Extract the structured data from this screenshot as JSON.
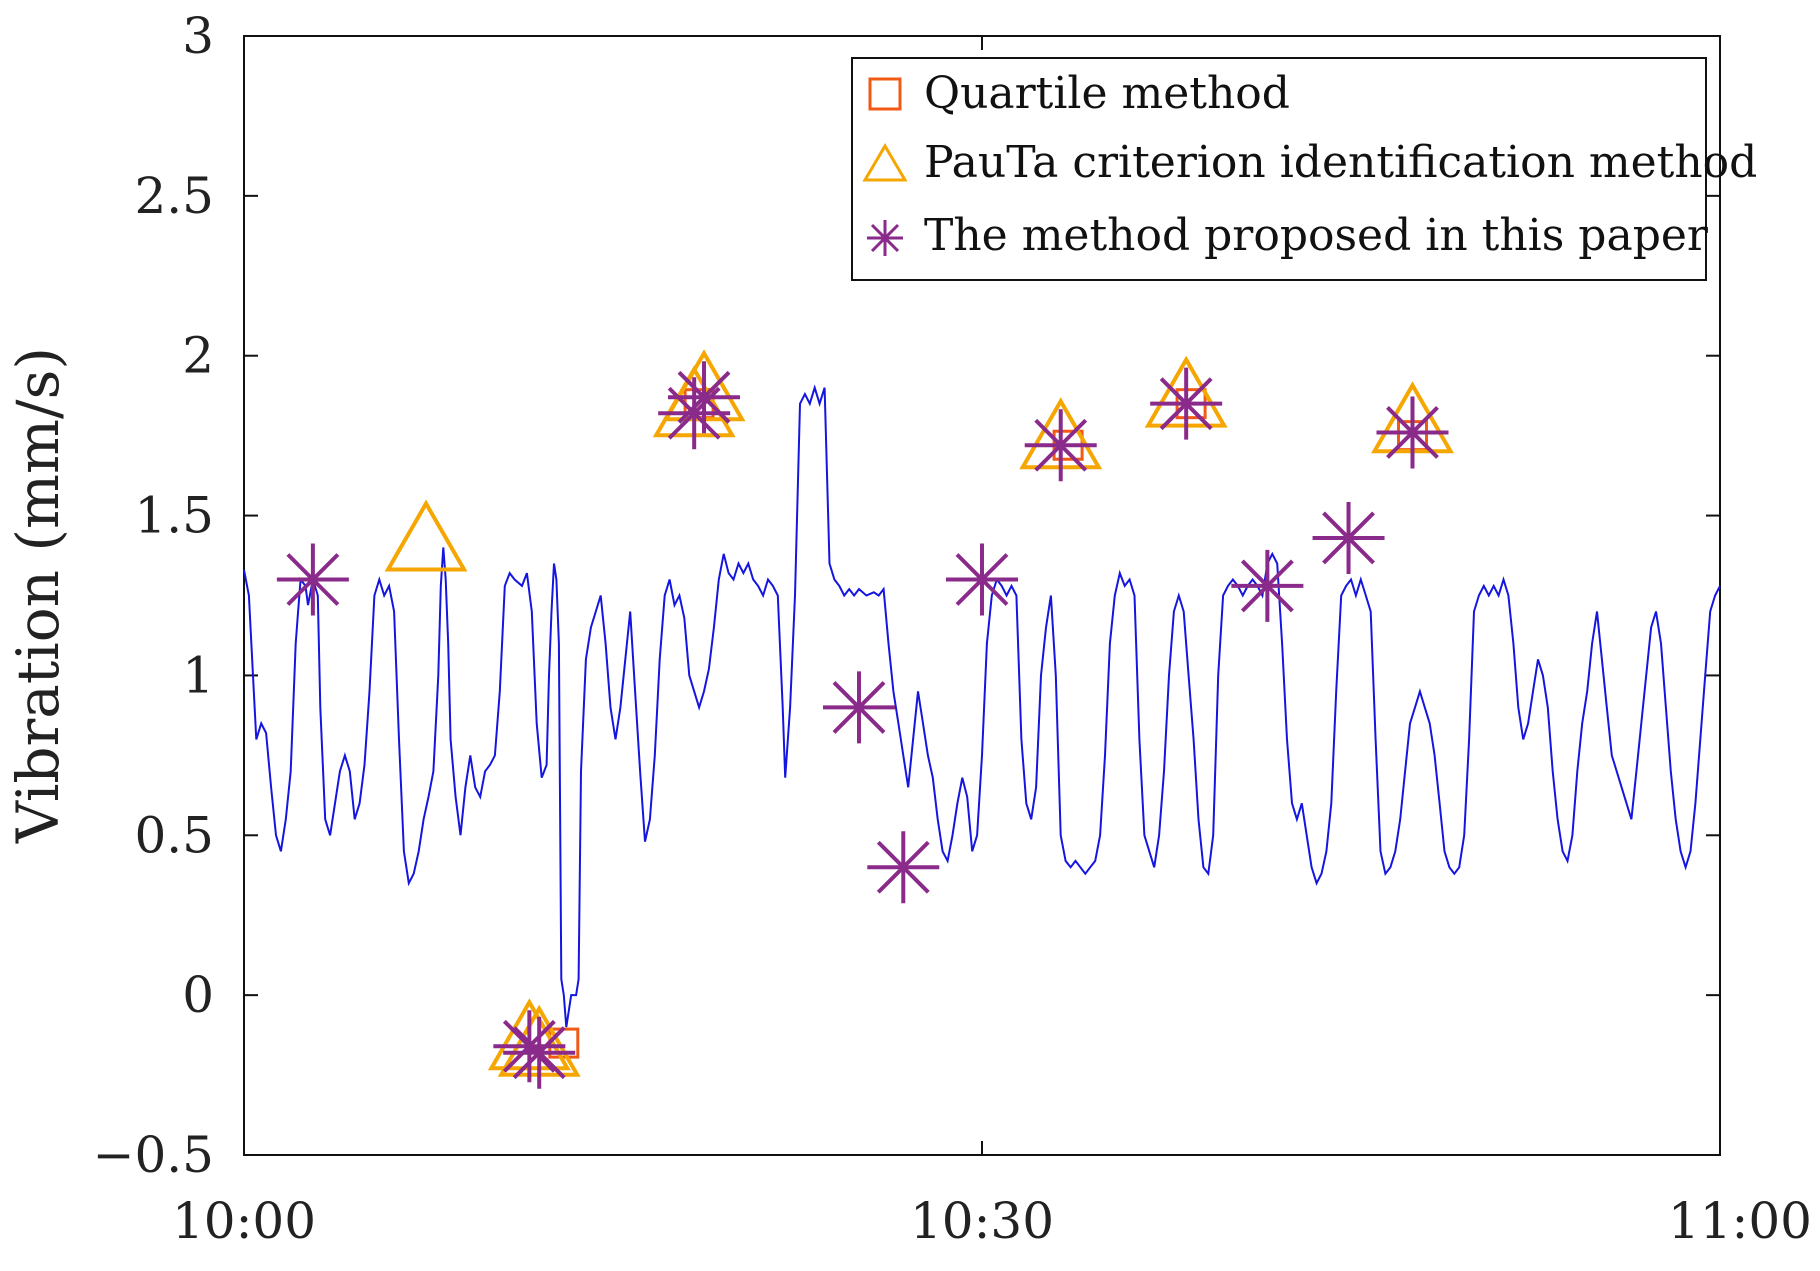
{
  "chart_data": {
    "type": "line",
    "title": "",
    "xlabel": "",
    "ylabel": "Vibration (mm/s)",
    "xlim": [
      0,
      60
    ],
    "ylim": [
      -0.5,
      3
    ],
    "xtick_values": [
      0,
      30,
      60
    ],
    "xtick_labels": [
      "10:00",
      "10:30",
      "11:00"
    ],
    "ytick_values": [
      -0.5,
      0,
      0.5,
      1,
      1.5,
      2,
      2.5,
      3
    ],
    "ytick_labels": [
      "−0.5",
      "0",
      "0.5",
      "1",
      "1.5",
      "2",
      "2.5",
      "3"
    ],
    "grid": false,
    "legend_position": "top-right",
    "line_color": "#1515e0",
    "signal": {
      "name": "Vibration",
      "points": [
        [
          0.0,
          1.33
        ],
        [
          0.2,
          1.25
        ],
        [
          0.4,
          0.95
        ],
        [
          0.5,
          0.8
        ],
        [
          0.7,
          0.85
        ],
        [
          0.9,
          0.82
        ],
        [
          1.1,
          0.65
        ],
        [
          1.3,
          0.5
        ],
        [
          1.5,
          0.45
        ],
        [
          1.7,
          0.55
        ],
        [
          1.9,
          0.7
        ],
        [
          2.1,
          1.1
        ],
        [
          2.2,
          1.2
        ],
        [
          2.3,
          1.3
        ],
        [
          2.5,
          1.28
        ],
        [
          2.6,
          1.22
        ],
        [
          2.8,
          1.3
        ],
        [
          3.0,
          1.25
        ],
        [
          3.1,
          0.9
        ],
        [
          3.3,
          0.55
        ],
        [
          3.5,
          0.5
        ],
        [
          3.7,
          0.6
        ],
        [
          3.9,
          0.7
        ],
        [
          4.1,
          0.75
        ],
        [
          4.3,
          0.7
        ],
        [
          4.5,
          0.55
        ],
        [
          4.7,
          0.6
        ],
        [
          4.9,
          0.72
        ],
        [
          5.1,
          0.95
        ],
        [
          5.3,
          1.25
        ],
        [
          5.5,
          1.3
        ],
        [
          5.7,
          1.25
        ],
        [
          5.9,
          1.28
        ],
        [
          6.1,
          1.2
        ],
        [
          6.3,
          0.8
        ],
        [
          6.5,
          0.45
        ],
        [
          6.7,
          0.35
        ],
        [
          6.9,
          0.38
        ],
        [
          7.1,
          0.45
        ],
        [
          7.3,
          0.55
        ],
        [
          7.5,
          0.62
        ],
        [
          7.7,
          0.7
        ],
        [
          7.9,
          1.0
        ],
        [
          8.0,
          1.28
        ],
        [
          8.1,
          1.4
        ],
        [
          8.2,
          1.3
        ],
        [
          8.3,
          1.1
        ],
        [
          8.4,
          0.8
        ],
        [
          8.6,
          0.62
        ],
        [
          8.8,
          0.5
        ],
        [
          9.0,
          0.65
        ],
        [
          9.2,
          0.75
        ],
        [
          9.4,
          0.65
        ],
        [
          9.6,
          0.62
        ],
        [
          9.8,
          0.7
        ],
        [
          10.0,
          0.72
        ],
        [
          10.2,
          0.75
        ],
        [
          10.4,
          0.95
        ],
        [
          10.6,
          1.28
        ],
        [
          10.8,
          1.32
        ],
        [
          11.0,
          1.3
        ],
        [
          11.3,
          1.28
        ],
        [
          11.5,
          1.32
        ],
        [
          11.7,
          1.2
        ],
        [
          11.9,
          0.85
        ],
        [
          12.1,
          0.68
        ],
        [
          12.3,
          0.72
        ],
        [
          12.4,
          1.0
        ],
        [
          12.5,
          1.2
        ],
        [
          12.6,
          1.35
        ],
        [
          12.7,
          1.3
        ],
        [
          12.8,
          1.1
        ],
        [
          12.9,
          0.05
        ],
        [
          13.0,
          0.0
        ],
        [
          13.1,
          -0.1
        ],
        [
          13.3,
          0.0
        ],
        [
          13.5,
          0.0
        ],
        [
          13.6,
          0.05
        ],
        [
          13.7,
          0.7
        ],
        [
          13.9,
          1.05
        ],
        [
          14.1,
          1.15
        ],
        [
          14.3,
          1.2
        ],
        [
          14.5,
          1.25
        ],
        [
          14.7,
          1.1
        ],
        [
          14.9,
          0.9
        ],
        [
          15.1,
          0.8
        ],
        [
          15.3,
          0.9
        ],
        [
          15.5,
          1.05
        ],
        [
          15.7,
          1.2
        ],
        [
          15.9,
          0.95
        ],
        [
          16.1,
          0.7
        ],
        [
          16.3,
          0.48
        ],
        [
          16.5,
          0.55
        ],
        [
          16.7,
          0.75
        ],
        [
          16.9,
          1.05
        ],
        [
          17.1,
          1.25
        ],
        [
          17.3,
          1.3
        ],
        [
          17.5,
          1.22
        ],
        [
          17.7,
          1.25
        ],
        [
          17.9,
          1.18
        ],
        [
          18.1,
          1.0
        ],
        [
          18.3,
          0.95
        ],
        [
          18.5,
          0.9
        ],
        [
          18.7,
          0.95
        ],
        [
          18.9,
          1.02
        ],
        [
          19.1,
          1.15
        ],
        [
          19.3,
          1.3
        ],
        [
          19.5,
          1.38
        ],
        [
          19.7,
          1.32
        ],
        [
          19.9,
          1.3
        ],
        [
          20.1,
          1.35
        ],
        [
          20.3,
          1.32
        ],
        [
          20.5,
          1.35
        ],
        [
          20.7,
          1.3
        ],
        [
          20.9,
          1.28
        ],
        [
          21.1,
          1.25
        ],
        [
          21.3,
          1.3
        ],
        [
          21.5,
          1.28
        ],
        [
          21.7,
          1.25
        ],
        [
          21.9,
          0.9
        ],
        [
          22.0,
          0.68
        ],
        [
          22.2,
          0.9
        ],
        [
          22.4,
          1.25
        ],
        [
          22.6,
          1.85
        ],
        [
          22.8,
          1.88
        ],
        [
          23.0,
          1.85
        ],
        [
          23.2,
          1.9
        ],
        [
          23.4,
          1.85
        ],
        [
          23.6,
          1.9
        ],
        [
          23.8,
          1.35
        ],
        [
          24.0,
          1.3
        ],
        [
          24.2,
          1.28
        ],
        [
          24.4,
          1.25
        ],
        [
          24.6,
          1.27
        ],
        [
          24.8,
          1.25
        ],
        [
          25.0,
          1.27
        ],
        [
          25.3,
          1.25
        ],
        [
          25.6,
          1.26
        ],
        [
          25.8,
          1.25
        ],
        [
          26.0,
          1.27
        ],
        [
          26.2,
          1.1
        ],
        [
          26.4,
          0.95
        ],
        [
          26.6,
          0.85
        ],
        [
          26.8,
          0.75
        ],
        [
          27.0,
          0.65
        ],
        [
          27.2,
          0.8
        ],
        [
          27.4,
          0.95
        ],
        [
          27.6,
          0.85
        ],
        [
          27.8,
          0.75
        ],
        [
          28.0,
          0.68
        ],
        [
          28.2,
          0.55
        ],
        [
          28.4,
          0.45
        ],
        [
          28.6,
          0.42
        ],
        [
          28.8,
          0.5
        ],
        [
          29.0,
          0.6
        ],
        [
          29.2,
          0.68
        ],
        [
          29.4,
          0.62
        ],
        [
          29.6,
          0.45
        ],
        [
          29.8,
          0.5
        ],
        [
          30.0,
          0.75
        ],
        [
          30.2,
          1.1
        ],
        [
          30.4,
          1.25
        ],
        [
          30.6,
          1.3
        ],
        [
          30.8,
          1.28
        ],
        [
          31.0,
          1.25
        ],
        [
          31.2,
          1.28
        ],
        [
          31.4,
          1.25
        ],
        [
          31.6,
          0.8
        ],
        [
          31.8,
          0.6
        ],
        [
          32.0,
          0.55
        ],
        [
          32.2,
          0.65
        ],
        [
          32.4,
          1.0
        ],
        [
          32.6,
          1.15
        ],
        [
          32.8,
          1.25
        ],
        [
          33.0,
          1.0
        ],
        [
          33.2,
          0.5
        ],
        [
          33.4,
          0.42
        ],
        [
          33.6,
          0.4
        ],
        [
          33.8,
          0.42
        ],
        [
          34.0,
          0.4
        ],
        [
          34.2,
          0.38
        ],
        [
          34.4,
          0.4
        ],
        [
          34.6,
          0.42
        ],
        [
          34.8,
          0.5
        ],
        [
          35.0,
          0.75
        ],
        [
          35.2,
          1.1
        ],
        [
          35.4,
          1.25
        ],
        [
          35.6,
          1.32
        ],
        [
          35.8,
          1.28
        ],
        [
          36.0,
          1.3
        ],
        [
          36.2,
          1.25
        ],
        [
          36.4,
          0.8
        ],
        [
          36.6,
          0.5
        ],
        [
          36.8,
          0.45
        ],
        [
          37.0,
          0.4
        ],
        [
          37.2,
          0.5
        ],
        [
          37.4,
          0.7
        ],
        [
          37.6,
          1.0
        ],
        [
          37.8,
          1.2
        ],
        [
          38.0,
          1.25
        ],
        [
          38.2,
          1.2
        ],
        [
          38.4,
          1.0
        ],
        [
          38.6,
          0.8
        ],
        [
          38.8,
          0.55
        ],
        [
          39.0,
          0.4
        ],
        [
          39.2,
          0.38
        ],
        [
          39.4,
          0.5
        ],
        [
          39.6,
          1.0
        ],
        [
          39.8,
          1.25
        ],
        [
          40.0,
          1.28
        ],
        [
          40.2,
          1.3
        ],
        [
          40.4,
          1.28
        ],
        [
          40.6,
          1.25
        ],
        [
          40.8,
          1.28
        ],
        [
          41.0,
          1.3
        ],
        [
          41.2,
          1.28
        ],
        [
          41.4,
          1.25
        ],
        [
          41.6,
          1.35
        ],
        [
          41.8,
          1.38
        ],
        [
          42.0,
          1.35
        ],
        [
          42.2,
          1.1
        ],
        [
          42.4,
          0.8
        ],
        [
          42.6,
          0.6
        ],
        [
          42.8,
          0.55
        ],
        [
          43.0,
          0.6
        ],
        [
          43.2,
          0.5
        ],
        [
          43.4,
          0.4
        ],
        [
          43.6,
          0.35
        ],
        [
          43.8,
          0.38
        ],
        [
          44.0,
          0.45
        ],
        [
          44.2,
          0.6
        ],
        [
          44.4,
          0.95
        ],
        [
          44.6,
          1.25
        ],
        [
          44.8,
          1.28
        ],
        [
          45.0,
          1.3
        ],
        [
          45.2,
          1.25
        ],
        [
          45.4,
          1.3
        ],
        [
          45.6,
          1.25
        ],
        [
          45.8,
          1.2
        ],
        [
          46.0,
          0.8
        ],
        [
          46.2,
          0.45
        ],
        [
          46.4,
          0.38
        ],
        [
          46.6,
          0.4
        ],
        [
          46.8,
          0.45
        ],
        [
          47.0,
          0.55
        ],
        [
          47.2,
          0.7
        ],
        [
          47.4,
          0.85
        ],
        [
          47.6,
          0.9
        ],
        [
          47.8,
          0.95
        ],
        [
          48.0,
          0.9
        ],
        [
          48.2,
          0.85
        ],
        [
          48.4,
          0.75
        ],
        [
          48.6,
          0.6
        ],
        [
          48.8,
          0.45
        ],
        [
          49.0,
          0.4
        ],
        [
          49.2,
          0.38
        ],
        [
          49.4,
          0.4
        ],
        [
          49.6,
          0.5
        ],
        [
          49.8,
          0.8
        ],
        [
          50.0,
          1.2
        ],
        [
          50.2,
          1.25
        ],
        [
          50.4,
          1.28
        ],
        [
          50.6,
          1.25
        ],
        [
          50.8,
          1.28
        ],
        [
          51.0,
          1.25
        ],
        [
          51.2,
          1.3
        ],
        [
          51.4,
          1.25
        ],
        [
          51.6,
          1.1
        ],
        [
          51.8,
          0.9
        ],
        [
          52.0,
          0.8
        ],
        [
          52.2,
          0.85
        ],
        [
          52.4,
          0.95
        ],
        [
          52.6,
          1.05
        ],
        [
          52.8,
          1.0
        ],
        [
          53.0,
          0.9
        ],
        [
          53.2,
          0.7
        ],
        [
          53.4,
          0.55
        ],
        [
          53.6,
          0.45
        ],
        [
          53.8,
          0.42
        ],
        [
          54.0,
          0.5
        ],
        [
          54.2,
          0.7
        ],
        [
          54.4,
          0.85
        ],
        [
          54.6,
          0.95
        ],
        [
          54.8,
          1.1
        ],
        [
          55.0,
          1.2
        ],
        [
          55.2,
          1.05
        ],
        [
          55.4,
          0.9
        ],
        [
          55.6,
          0.75
        ],
        [
          55.8,
          0.7
        ],
        [
          56.0,
          0.65
        ],
        [
          56.2,
          0.6
        ],
        [
          56.4,
          0.55
        ],
        [
          56.6,
          0.7
        ],
        [
          56.8,
          0.85
        ],
        [
          57.0,
          1.0
        ],
        [
          57.2,
          1.15
        ],
        [
          57.4,
          1.2
        ],
        [
          57.6,
          1.1
        ],
        [
          57.8,
          0.9
        ],
        [
          58.0,
          0.7
        ],
        [
          58.2,
          0.55
        ],
        [
          58.4,
          0.45
        ],
        [
          58.6,
          0.4
        ],
        [
          58.8,
          0.45
        ],
        [
          59.0,
          0.6
        ],
        [
          59.2,
          0.8
        ],
        [
          59.4,
          1.0
        ],
        [
          59.6,
          1.2
        ],
        [
          59.8,
          1.25
        ],
        [
          60.0,
          1.28
        ]
      ]
    },
    "series": [
      {
        "name": "Quartile method",
        "marker": "square",
        "color": "#f05a14",
        "points": [
          [
            13.0,
            -0.15
          ],
          [
            18.5,
            1.85
          ],
          [
            33.5,
            1.72
          ],
          [
            38.5,
            1.85
          ],
          [
            47.5,
            1.75
          ]
        ]
      },
      {
        "name": "PauTa criterion identification method",
        "marker": "triangle",
        "color": "#f5a600",
        "points": [
          [
            7.4,
            1.4
          ],
          [
            11.6,
            -0.16
          ],
          [
            12.0,
            -0.18
          ],
          [
            18.3,
            1.82
          ],
          [
            18.7,
            1.87
          ],
          [
            33.2,
            1.72
          ],
          [
            38.3,
            1.85
          ],
          [
            47.5,
            1.77
          ]
        ]
      },
      {
        "name": "The method proposed in this paper",
        "marker": "asterisk",
        "color": "#8a2a8a",
        "points": [
          [
            2.8,
            1.3
          ],
          [
            11.6,
            -0.16
          ],
          [
            12.0,
            -0.18
          ],
          [
            18.3,
            1.82
          ],
          [
            18.7,
            1.87
          ],
          [
            25.0,
            0.9
          ],
          [
            26.8,
            0.4
          ],
          [
            30.0,
            1.3
          ],
          [
            33.2,
            1.72
          ],
          [
            38.3,
            1.85
          ],
          [
            41.6,
            1.28
          ],
          [
            44.9,
            1.43
          ],
          [
            47.5,
            1.76
          ]
        ]
      }
    ]
  }
}
